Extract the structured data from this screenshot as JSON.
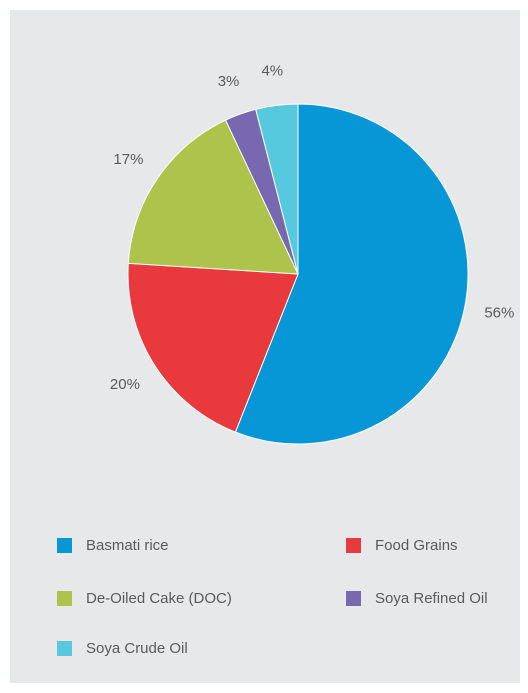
{
  "chart_data": {
    "type": "pie",
    "categories": [
      "Basmati rice",
      "Food Grains",
      "De-Oiled Cake (DOC)",
      "Soya Refined Oil",
      "Soya Crude Oil"
    ],
    "values": [
      56,
      20,
      17,
      3,
      4
    ],
    "data_labels": [
      "56%",
      "20%",
      "17%",
      "3%",
      "4%"
    ],
    "colors": [
      "#0797d7",
      "#e8393d",
      "#adc34b",
      "#7768b0",
      "#57c9df"
    ],
    "start_angle_deg": 0,
    "direction": "clockwise",
    "legend_position": "bottom",
    "legend": [
      {
        "label": "Basmati rice",
        "color": "#0797d7"
      },
      {
        "label": "Food Grains",
        "color": "#e8393d"
      },
      {
        "label": "De-Oiled Cake (DOC)",
        "color": "#adc34b"
      },
      {
        "label": "Soya Refined Oil",
        "color": "#7768b0"
      },
      {
        "label": "Soya Crude Oil",
        "color": "#57c9df"
      }
    ]
  }
}
